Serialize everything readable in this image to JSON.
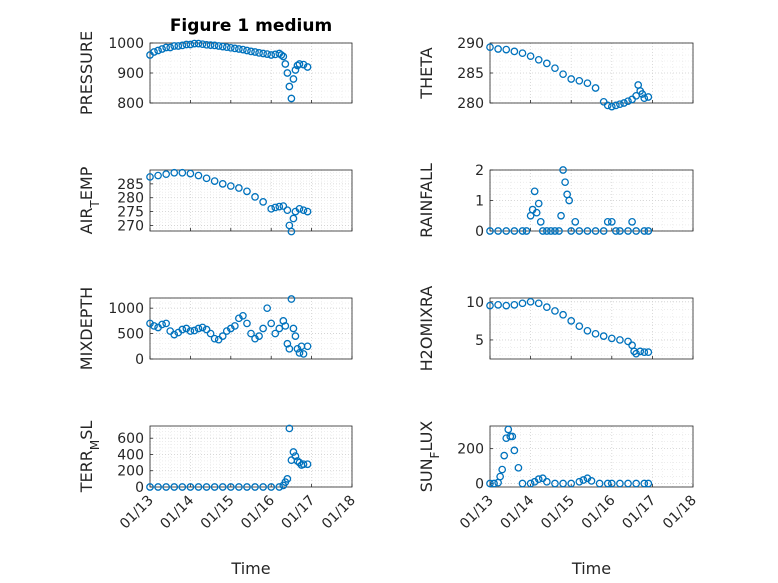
{
  "chart_data": [
    {
      "type": "scatter",
      "title": "Figure 1 medium",
      "ylabel": "PRESSURE",
      "ylim": [
        800,
        1000
      ],
      "yticks": [
        "800",
        "900",
        "1000"
      ],
      "grid": true,
      "marker_color": "#0072BD",
      "x": [
        13.0,
        13.1,
        13.2,
        13.3,
        13.4,
        13.5,
        13.6,
        13.7,
        13.8,
        13.9,
        14.0,
        14.1,
        14.2,
        14.3,
        14.4,
        14.5,
        14.6,
        14.7,
        14.8,
        14.9,
        15.0,
        15.1,
        15.2,
        15.3,
        15.4,
        15.5,
        15.6,
        15.7,
        15.8,
        15.9,
        16.0,
        16.1,
        16.2,
        16.25,
        16.3,
        16.35,
        16.4,
        16.45,
        16.5,
        16.55,
        16.6,
        16.65,
        16.7,
        16.8,
        16.9
      ],
      "y": [
        960,
        970,
        975,
        980,
        985,
        985,
        990,
        990,
        992,
        995,
        995,
        998,
        998,
        996,
        994,
        993,
        992,
        990,
        988,
        986,
        984,
        982,
        980,
        978,
        975,
        972,
        970,
        967,
        965,
        963,
        960,
        962,
        965,
        960,
        955,
        930,
        900,
        855,
        815,
        880,
        910,
        925,
        930,
        928,
        920
      ]
    },
    {
      "type": "scatter",
      "ylabel": "THETA",
      "ylim": [
        280,
        290
      ],
      "yticks": [
        "280",
        "285",
        "290"
      ],
      "grid": true,
      "marker_color": "#0072BD",
      "x": [
        13.0,
        13.2,
        13.4,
        13.6,
        13.8,
        14.0,
        14.2,
        14.4,
        14.6,
        14.8,
        15.0,
        15.2,
        15.4,
        15.6,
        15.8,
        15.9,
        16.0,
        16.1,
        16.2,
        16.3,
        16.4,
        16.5,
        16.6,
        16.65,
        16.7,
        16.75,
        16.8,
        16.9
      ],
      "y": [
        289.3,
        289.0,
        288.9,
        288.6,
        288.3,
        287.8,
        287.2,
        286.6,
        285.8,
        284.8,
        284.0,
        283.7,
        283.3,
        282.5,
        280.2,
        279.6,
        279.4,
        279.6,
        279.8,
        280.0,
        280.3,
        280.6,
        281.2,
        283.0,
        282.0,
        281.5,
        280.8,
        281.0
      ]
    },
    {
      "type": "scatter",
      "ylabel": "AIR_TEMP",
      "ylim": [
        268,
        290
      ],
      "yticks": [
        "270",
        "275",
        "280",
        "285"
      ],
      "grid": true,
      "marker_color": "#0072BD",
      "x": [
        13.0,
        13.2,
        13.4,
        13.6,
        13.8,
        14.0,
        14.2,
        14.4,
        14.6,
        14.8,
        15.0,
        15.2,
        15.4,
        15.6,
        15.8,
        16.0,
        16.1,
        16.2,
        16.3,
        16.4,
        16.45,
        16.5,
        16.55,
        16.6,
        16.7,
        16.8,
        16.9
      ],
      "y": [
        287.5,
        288.0,
        288.5,
        289.0,
        289.0,
        288.7,
        288.0,
        287.0,
        286.0,
        285.0,
        284.2,
        283.5,
        282.3,
        280.3,
        278.5,
        276.0,
        276.5,
        276.8,
        277.0,
        275.5,
        270.0,
        267.8,
        272.5,
        275.0,
        276.0,
        275.5,
        275.0
      ]
    },
    {
      "type": "scatter",
      "ylabel": "RAINFALL",
      "ylim": [
        0,
        2
      ],
      "yticks": [
        "0",
        "1",
        "2"
      ],
      "grid": true,
      "marker_color": "#0072BD",
      "x": [
        13.0,
        13.2,
        13.4,
        13.6,
        13.8,
        13.9,
        14.0,
        14.05,
        14.1,
        14.15,
        14.2,
        14.25,
        14.3,
        14.4,
        14.5,
        14.6,
        14.7,
        14.75,
        14.8,
        14.85,
        14.9,
        14.95,
        15.0,
        15.1,
        15.2,
        15.4,
        15.6,
        15.8,
        15.9,
        16.0,
        16.1,
        16.2,
        16.4,
        16.5,
        16.6,
        16.8,
        16.9
      ],
      "y": [
        0,
        0,
        0,
        0,
        0,
        0,
        0.5,
        0.7,
        1.3,
        0.6,
        0.9,
        0.3,
        0,
        0,
        0,
        0,
        0,
        0.5,
        2.0,
        1.6,
        1.2,
        1.0,
        0,
        0.3,
        0,
        0,
        0,
        0,
        0.3,
        0.3,
        0,
        0,
        0,
        0.3,
        0,
        0,
        0
      ]
    },
    {
      "type": "scatter",
      "ylabel": "MIXDEPTH",
      "ylim": [
        0,
        1200
      ],
      "yticks": [
        "0",
        "500",
        "1000"
      ],
      "grid": true,
      "marker_color": "#0072BD",
      "x": [
        13.0,
        13.1,
        13.2,
        13.3,
        13.4,
        13.5,
        13.6,
        13.7,
        13.8,
        13.9,
        14.0,
        14.1,
        14.2,
        14.3,
        14.4,
        14.5,
        14.6,
        14.7,
        14.8,
        14.9,
        15.0,
        15.1,
        15.2,
        15.3,
        15.4,
        15.5,
        15.6,
        15.7,
        15.8,
        15.9,
        16.0,
        16.1,
        16.2,
        16.3,
        16.35,
        16.4,
        16.45,
        16.5,
        16.55,
        16.6,
        16.65,
        16.7,
        16.75,
        16.8,
        16.9
      ],
      "y": [
        700,
        650,
        620,
        680,
        700,
        550,
        480,
        520,
        580,
        600,
        550,
        560,
        600,
        620,
        580,
        500,
        400,
        380,
        450,
        550,
        600,
        650,
        800,
        850,
        700,
        500,
        400,
        450,
        600,
        1000,
        700,
        500,
        600,
        750,
        650,
        300,
        200,
        1180,
        600,
        450,
        200,
        120,
        250,
        100,
        250
      ]
    },
    {
      "type": "scatter",
      "ylabel": "H2OMIXRA",
      "ylim": [
        2.5,
        10.5
      ],
      "yticks": [
        "5",
        "10"
      ],
      "grid": true,
      "marker_color": "#0072BD",
      "x": [
        13.0,
        13.2,
        13.4,
        13.6,
        13.8,
        14.0,
        14.2,
        14.4,
        14.6,
        14.8,
        15.0,
        15.2,
        15.4,
        15.6,
        15.8,
        16.0,
        16.2,
        16.4,
        16.5,
        16.55,
        16.6,
        16.7,
        16.8,
        16.9
      ],
      "y": [
        9.5,
        9.6,
        9.5,
        9.6,
        9.8,
        10.0,
        9.8,
        9.3,
        8.8,
        8.3,
        7.5,
        6.8,
        6.2,
        5.8,
        5.5,
        5.2,
        5.0,
        4.8,
        4.3,
        3.5,
        3.2,
        3.5,
        3.4,
        3.4
      ]
    },
    {
      "type": "scatter",
      "ylabel": "TERR_MSL",
      "ylim": [
        0,
        750
      ],
      "yticks": [
        "0",
        "200",
        "400",
        "600"
      ],
      "grid": true,
      "marker_color": "#0072BD",
      "x": [
        13.0,
        13.2,
        13.4,
        13.6,
        13.8,
        14.0,
        14.2,
        14.4,
        14.6,
        14.8,
        15.0,
        15.2,
        15.4,
        15.6,
        15.8,
        16.0,
        16.2,
        16.3,
        16.35,
        16.4,
        16.45,
        16.5,
        16.55,
        16.6,
        16.65,
        16.7,
        16.75,
        16.8,
        16.9
      ],
      "y": [
        0,
        0,
        0,
        0,
        0,
        0,
        0,
        0,
        0,
        0,
        0,
        0,
        0,
        0,
        0,
        0,
        0,
        20,
        60,
        100,
        720,
        330,
        430,
        380,
        320,
        300,
        270,
        280,
        280
      ]
    },
    {
      "type": "scatter",
      "ylabel": "SUN_FLUX",
      "ylim": [
        -20,
        330
      ],
      "yticks": [
        "0",
        "200"
      ],
      "grid": true,
      "marker_color": "#0072BD",
      "x": [
        13.0,
        13.1,
        13.2,
        13.25,
        13.3,
        13.35,
        13.4,
        13.45,
        13.5,
        13.55,
        13.6,
        13.7,
        13.8,
        14.0,
        14.1,
        14.2,
        14.3,
        14.4,
        14.6,
        14.8,
        15.0,
        15.2,
        15.3,
        15.4,
        15.5,
        15.7,
        15.9,
        16.0,
        16.2,
        16.4,
        16.6,
        16.8,
        16.9
      ],
      "y": [
        0,
        0,
        5,
        40,
        80,
        160,
        260,
        310,
        270,
        270,
        190,
        90,
        0,
        0,
        10,
        25,
        30,
        10,
        0,
        0,
        0,
        10,
        20,
        30,
        15,
        0,
        0,
        0,
        0,
        0,
        0,
        0,
        0
      ]
    }
  ],
  "x_axis": {
    "label": "Time",
    "ticks": [
      "01/13",
      "01/14",
      "01/15",
      "01/16",
      "01/17",
      "01/18"
    ],
    "range": [
      13,
      18
    ]
  }
}
